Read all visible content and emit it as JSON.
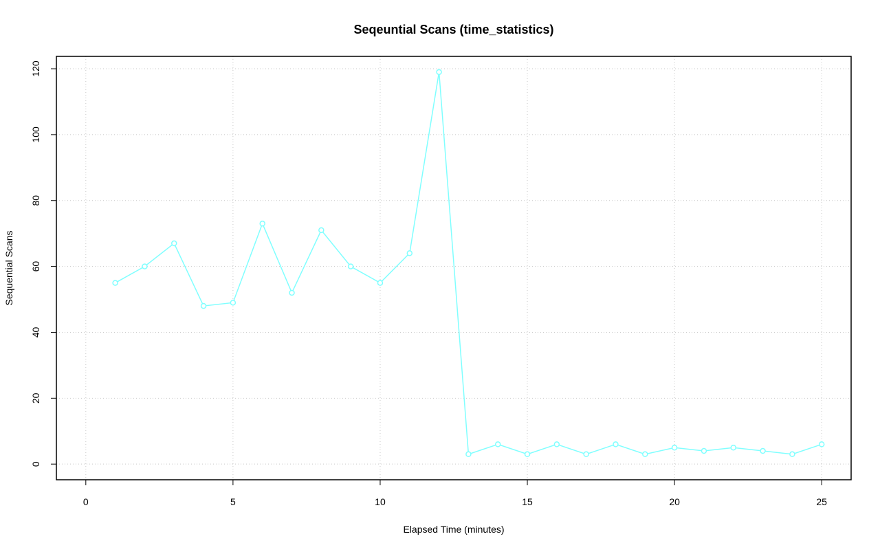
{
  "chart_data": {
    "type": "line",
    "title": "Seqeuntial Scans (time_statistics)",
    "x_label": "Elapsed Time (minutes)",
    "y_label": "Sequential Scans",
    "x": [
      1,
      2,
      3,
      4,
      5,
      6,
      7,
      8,
      9,
      10,
      11,
      12,
      13,
      14,
      15,
      16,
      17,
      18,
      19,
      20,
      21,
      22,
      23,
      24,
      25
    ],
    "series": [
      {
        "color": "#80ffff",
        "values": [
          55,
          60,
          67,
          48,
          49,
          73,
          52,
          71,
          60,
          55,
          64,
          119,
          3,
          6,
          3,
          6,
          3,
          6,
          3,
          5,
          4,
          5,
          4,
          3,
          6
        ]
      }
    ],
    "xlim": [
      -1,
      26
    ],
    "xticks": [
      0,
      5,
      10,
      15,
      20,
      25
    ],
    "ylim": [
      -4.76,
      123.76
    ],
    "yticks": [
      0,
      20,
      40,
      60,
      80,
      100,
      120
    ],
    "grid": true
  }
}
